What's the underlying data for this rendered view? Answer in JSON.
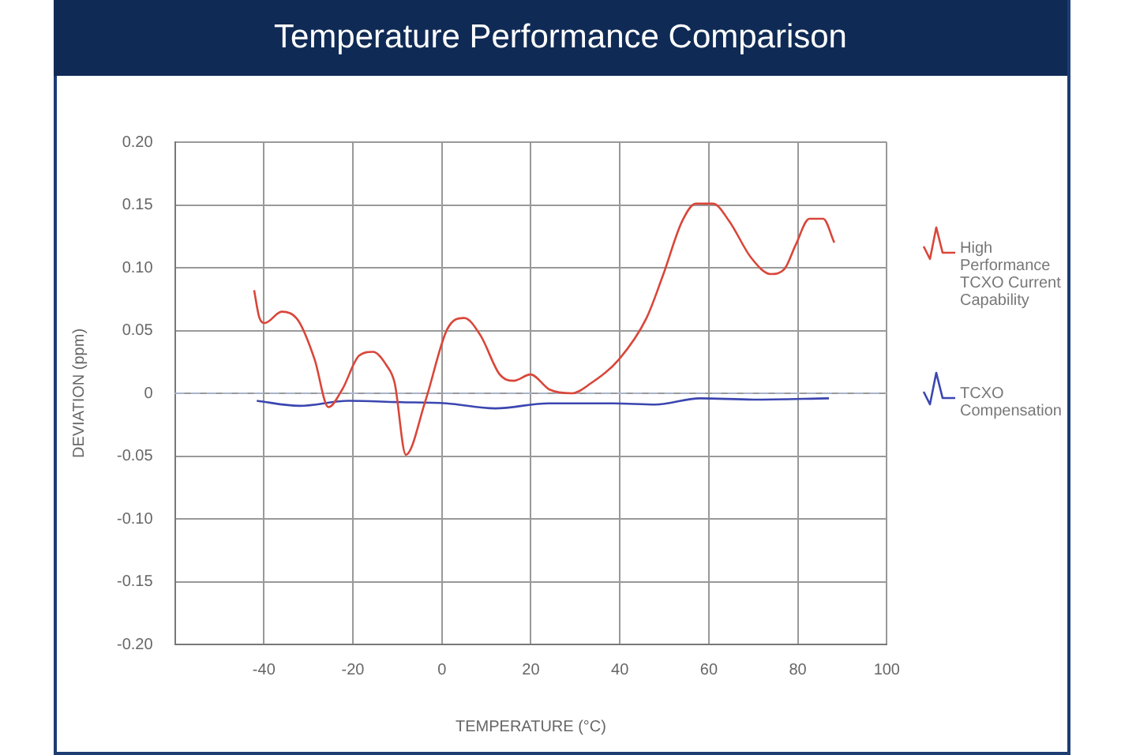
{
  "chart_data": {
    "type": "line",
    "title": "Temperature Performance Comparison",
    "xlabel": "TEMPERATURE (°C)",
    "ylabel": "DEVIATION (ppm)",
    "xlim": [
      -60,
      100
    ],
    "xticks": [
      -40,
      -20,
      0,
      20,
      40,
      60,
      80,
      100
    ],
    "ylim": [
      -0.2,
      0.2
    ],
    "yticks": [
      {
        "value": -0.2,
        "label": "-0.20"
      },
      {
        "value": -0.15,
        "label": "-0.15"
      },
      {
        "value": -0.1,
        "label": "-0.10"
      },
      {
        "value": -0.05,
        "label": "-0.05"
      },
      0,
      {
        "value": 0.05,
        "label": "0.05"
      },
      {
        "value": 0.1,
        "label": "0.10"
      },
      {
        "value": 0.15,
        "label": "0.15"
      },
      {
        "value": 0.2,
        "label": "0.20"
      }
    ],
    "grid": true,
    "legend": "right",
    "marker": "none",
    "ref_lines": [
      {
        "axis": "y",
        "value": 0,
        "color": "#aab4cc",
        "line_style": "dashed"
      }
    ],
    "series": [
      {
        "name": "High Performance TCXO Current Capability",
        "color": "#d9463a",
        "x": [
          -42.2,
          -41,
          -39.8,
          -36,
          -32.3,
          -28.6,
          -25.5,
          -22.4,
          -18.6,
          -15.5,
          -12.4,
          -10.6,
          -8.1,
          -3.7,
          1.2,
          5,
          8.7,
          13,
          16.2,
          19.9,
          24.2,
          29.2,
          33.5,
          39.8,
          46,
          49.7,
          54,
          57.1,
          60.9,
          64.6,
          69.5,
          73.9,
          77,
          79.5,
          82.6,
          85.7,
          88.2
        ],
        "values": [
          0.082,
          0.06,
          0.056,
          0.065,
          0.058,
          0.027,
          -0.011,
          0.003,
          0.03,
          0.033,
          0.022,
          0.008,
          -0.049,
          -0.006,
          0.051,
          0.06,
          0.046,
          0.015,
          0.01,
          0.015,
          0.003,
          0,
          0.008,
          0.027,
          0.06,
          0.094,
          0.137,
          0.151,
          0.151,
          0.137,
          0.108,
          0.095,
          0.099,
          0.118,
          0.139,
          0.139,
          0.12
        ]
      },
      {
        "name": "TCXO Compensation",
        "color": "#3b46b0",
        "x": [
          -41.6,
          -32,
          -21,
          -10,
          1,
          12,
          24,
          38.5,
          48,
          58,
          70,
          87
        ],
        "values": [
          -0.006,
          -0.01,
          -0.006,
          -0.007,
          -0.008,
          -0.012,
          -0.008,
          -0.008,
          -0.009,
          -0.004,
          -0.005,
          -0.004
        ]
      }
    ]
  }
}
